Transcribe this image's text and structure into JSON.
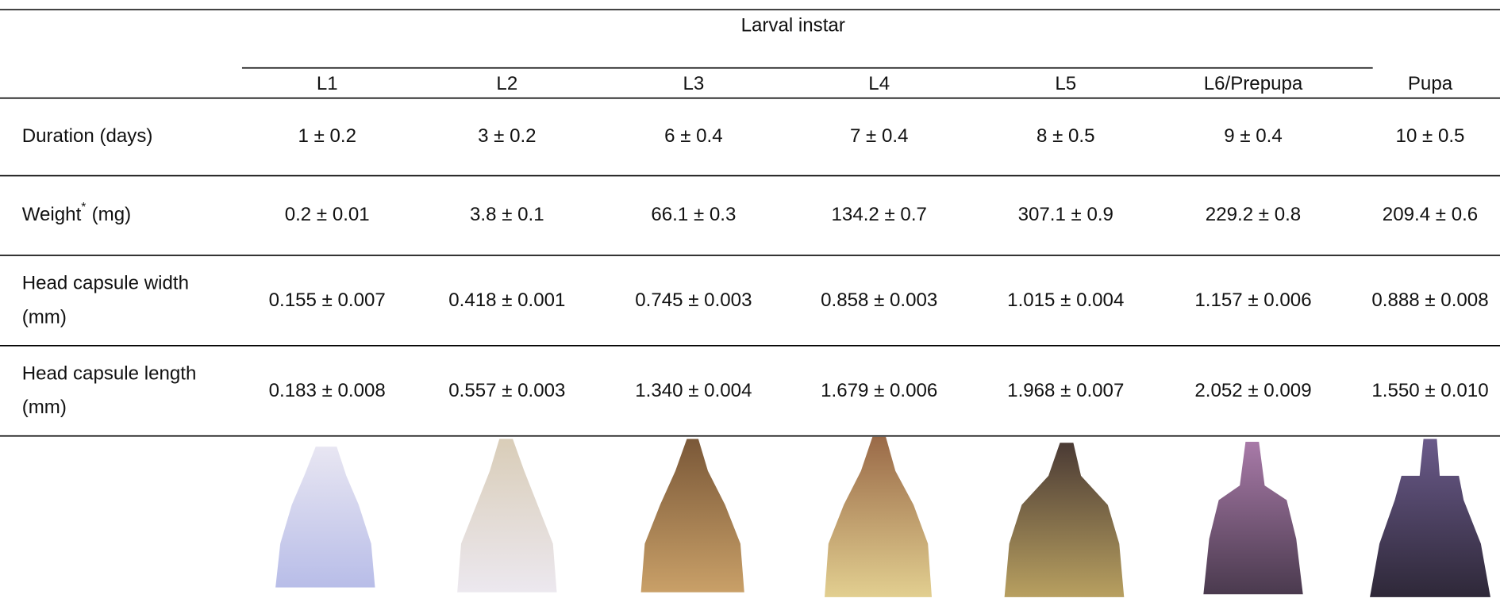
{
  "header": {
    "group": "Larval instar",
    "columns": [
      "L1",
      "L2",
      "L3",
      "L4",
      "L5",
      "L6/Prepupa",
      "Pupa"
    ]
  },
  "table": {
    "rows": [
      {
        "label_lines": [
          "Duration (days)"
        ],
        "cells": [
          "1 ± 0.2",
          "3 ± 0.2",
          "6 ± 0.4",
          "7 ± 0.4",
          "8 ± 0.5",
          "9 ± 0.4",
          "10 ± 0.5"
        ]
      },
      {
        "label": "Weight",
        "label_sup": "*",
        "label_unit": "(mg)",
        "cells": [
          "0.2 ± 0.01",
          "3.8 ± 0.1",
          "66.1 ± 0.3",
          "134.2 ± 0.7",
          "307.1 ± 0.9",
          "229.2 ± 0.8",
          "209.4 ± 0.6"
        ]
      },
      {
        "label_lines": [
          "Head capsule width",
          "(mm)"
        ],
        "cells": [
          "0.155 ± 0.007",
          "0.418 ± 0.001",
          "0.745 ± 0.003",
          "0.858 ± 0.003",
          "1.015 ± 0.004",
          "1.157 ± 0.006",
          "0.888 ± 0.008"
        ]
      },
      {
        "label_lines": [
          "Head capsule length",
          "(mm)"
        ],
        "cells": [
          "0.183 ± 0.008",
          "0.557 ± 0.003",
          "1.340 ± 0.004",
          "1.679 ± 0.006",
          "1.968 ± 0.007",
          "2.052 ± 0.009",
          "1.550 ± 0.010"
        ]
      }
    ]
  }
}
